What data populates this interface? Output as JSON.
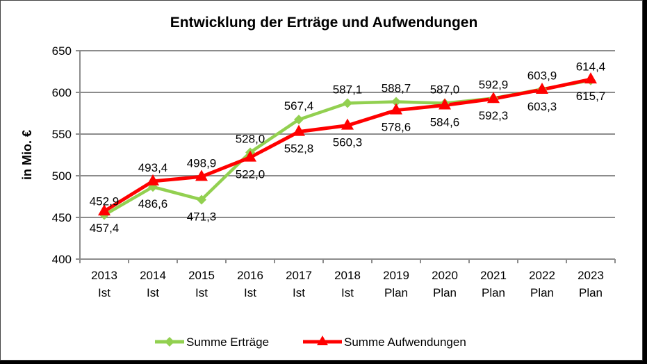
{
  "chart_data": {
    "type": "line",
    "title": "Entwicklung der Erträge und Aufwendungen",
    "xlabel": "",
    "ylabel": "in Mio. €",
    "ylim": [
      400,
      650
    ],
    "yticks": [
      400,
      450,
      500,
      550,
      600,
      650
    ],
    "ytick_labels": [
      "400",
      "450",
      "500",
      "550",
      "600",
      "650"
    ],
    "grid": true,
    "legend_position": "bottom",
    "categories": [
      {
        "year": "2013",
        "kind": "Ist"
      },
      {
        "year": "2014",
        "kind": "Ist"
      },
      {
        "year": "2015",
        "kind": "Ist"
      },
      {
        "year": "2016",
        "kind": "Ist"
      },
      {
        "year": "2017",
        "kind": "Ist"
      },
      {
        "year": "2018",
        "kind": "Ist"
      },
      {
        "year": "2019",
        "kind": "Plan"
      },
      {
        "year": "2020",
        "kind": "Plan"
      },
      {
        "year": "2021",
        "kind": "Plan"
      },
      {
        "year": "2022",
        "kind": "Plan"
      },
      {
        "year": "2023",
        "kind": "Plan"
      }
    ],
    "series": [
      {
        "name": "Summe Erträge",
        "color": "#92D050",
        "marker": "diamond",
        "values": [
          452.9,
          486.6,
          471.3,
          528.0,
          567.4,
          587.1,
          588.7,
          587.0,
          592.9,
          603.9,
          614.4
        ],
        "labels": [
          "452,9",
          "486,6",
          "471,3",
          "528,0",
          "567,4",
          "587,1",
          "588,7",
          "587,0",
          "592,9",
          "603,9",
          "614,4"
        ],
        "label_side": [
          "above",
          "below",
          "below",
          "above",
          "above",
          "above",
          "above",
          "above",
          "above",
          "above",
          "above"
        ]
      },
      {
        "name": "Summe Aufwendungen",
        "color": "#FF0000",
        "marker": "triangle",
        "values": [
          457.4,
          493.4,
          498.9,
          522.0,
          552.8,
          560.3,
          578.6,
          584.6,
          592.3,
          603.3,
          615.7
        ],
        "labels": [
          "457,4",
          "493,4",
          "498,9",
          "522,0",
          "552,8",
          "560,3",
          "578,6",
          "584,6",
          "592,3",
          "603,3",
          "615,7"
        ],
        "label_side": [
          "below",
          "above",
          "above",
          "below",
          "below",
          "below",
          "below",
          "below",
          "below",
          "below",
          "below"
        ]
      }
    ]
  }
}
